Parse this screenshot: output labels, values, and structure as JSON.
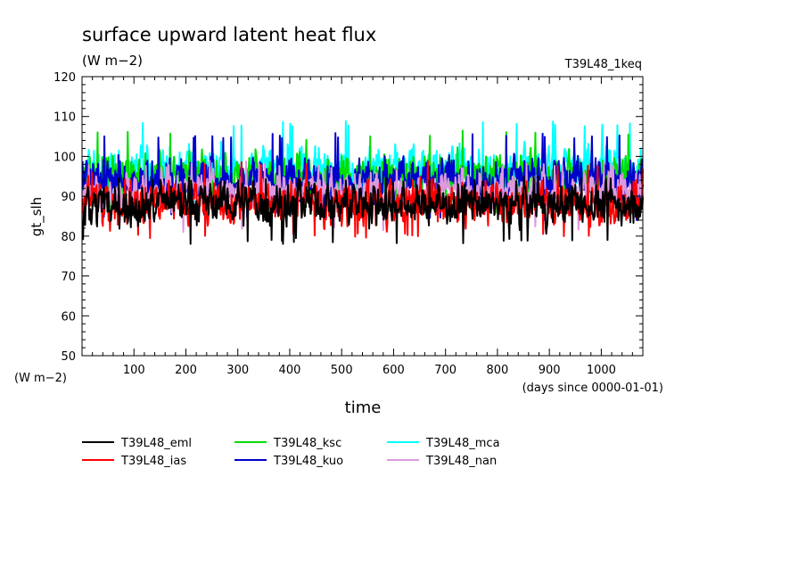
{
  "chart_data": {
    "type": "line",
    "title": "surface upward latent heat flux",
    "subtitle": "(W m−2)",
    "experiment_label": "T39L48_1keq",
    "ylabel": "gt_slh",
    "y_unit_label": "(W m−2)",
    "xlabel": "time",
    "x_unit_label": "(days since 0000-01-01)",
    "xlim": [
      0,
      1080
    ],
    "ylim": [
      50,
      120
    ],
    "x_ticks": [
      100,
      200,
      300,
      400,
      500,
      600,
      700,
      800,
      900,
      1000
    ],
    "x_tick_labels": [
      "100",
      "200",
      "300",
      "400",
      "500",
      "600",
      "700",
      "800",
      "900",
      "1000"
    ],
    "y_ticks": [
      50,
      60,
      70,
      80,
      90,
      100,
      110,
      120
    ],
    "y_tick_labels": [
      "50",
      "60",
      "70",
      "80",
      "90",
      "100",
      "110",
      "120"
    ],
    "grid": false,
    "legend_position": "bottom",
    "series": [
      {
        "name": "T39L48_eml",
        "color": "#000000",
        "mean": 88.0,
        "amplitude": 3.2,
        "min": 78,
        "max": 95
      },
      {
        "name": "T39L48_ias",
        "color": "#ff0000",
        "mean": 88.5,
        "amplitude": 3.2,
        "min": 79.5,
        "max": 99
      },
      {
        "name": "T39L48_ksc",
        "color": "#00dd00",
        "mean": 95.0,
        "amplitude": 3.5,
        "min": 85,
        "max": 106.5
      },
      {
        "name": "T39L48_kuo",
        "color": "#0000cc",
        "mean": 94.0,
        "amplitude": 3.5,
        "min": 84,
        "max": 106
      },
      {
        "name": "T39L48_mca",
        "color": "#00ffff",
        "mean": 97.0,
        "amplitude": 3.5,
        "min": 88,
        "max": 109
      },
      {
        "name": "T39L48_nan",
        "color": "#dd99dd",
        "mean": 91.0,
        "amplitude": 3.0,
        "min": 81,
        "max": 99
      }
    ]
  }
}
